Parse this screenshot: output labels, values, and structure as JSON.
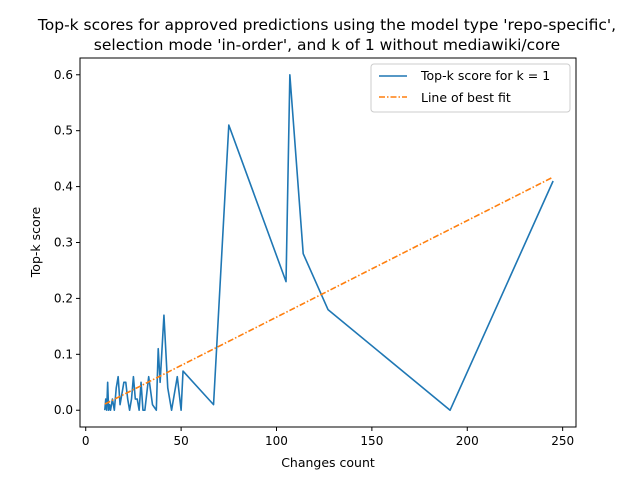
{
  "chart_data": {
    "type": "line",
    "title_lines": [
      "Top-k scores for approved predictions using the model type 'repo-specific',",
      "selection mode 'in-order', and k of 1 without mediawiki/core"
    ],
    "xlabel": "Changes count",
    "ylabel": "Top-k score",
    "xlim": [
      -3,
      257
    ],
    "ylim": [
      -0.03,
      0.63
    ],
    "xticks": [
      0,
      50,
      100,
      150,
      200,
      250
    ],
    "yticks": [
      0.0,
      0.1,
      0.2,
      0.3,
      0.4,
      0.5,
      0.6
    ],
    "xtick_labels": [
      "0",
      "50",
      "100",
      "150",
      "200",
      "250"
    ],
    "ytick_labels": [
      "0.0",
      "0.1",
      "0.2",
      "0.3",
      "0.4",
      "0.5",
      "0.6"
    ],
    "grid": false,
    "legend_position": "top-right",
    "series": [
      {
        "name": "Top-k score for k = 1",
        "color": "#1f77b4",
        "style": "solid",
        "x": [
          10,
          10.5,
          11,
          11.5,
          12,
          12.5,
          13,
          13.5,
          14,
          14.5,
          15,
          16,
          17,
          18,
          19,
          20,
          21,
          22,
          23,
          24,
          25,
          26,
          27,
          28,
          29,
          30,
          31,
          32,
          33,
          35,
          37,
          38,
          39,
          41,
          43,
          45,
          48,
          50,
          51,
          67,
          75,
          105,
          107,
          114,
          127,
          191,
          245
        ],
        "y": [
          0.0,
          0.02,
          0.0,
          0.05,
          0.0,
          0.01,
          0.0,
          0.01,
          0.02,
          0.01,
          0.0,
          0.04,
          0.06,
          0.01,
          0.03,
          0.05,
          0.05,
          0.02,
          0.0,
          0.02,
          0.06,
          0.02,
          0.02,
          0.0,
          0.05,
          0.0,
          0.0,
          0.03,
          0.06,
          0.01,
          0.0,
          0.11,
          0.05,
          0.17,
          0.04,
          0.0,
          0.06,
          0.0,
          0.07,
          0.01,
          0.51,
          0.23,
          0.6,
          0.28,
          0.18,
          0.0,
          0.41
        ]
      },
      {
        "name": "Line of best fit",
        "color": "#ff7f0e",
        "style": "dashdot",
        "x": [
          10,
          245
        ],
        "y": [
          0.011,
          0.417
        ]
      }
    ]
  }
}
